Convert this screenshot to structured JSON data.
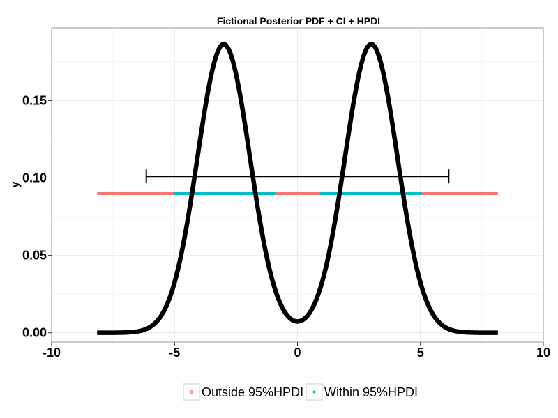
{
  "chart_data": {
    "type": "line",
    "title": "Fictional Posterior PDF + CI + HPDI",
    "xlabel": "",
    "ylabel": "y",
    "xlim": [
      -10,
      10
    ],
    "ylim": [
      -0.006,
      0.197
    ],
    "x_ticks": [
      -10,
      -5,
      0,
      5,
      10
    ],
    "x_tick_labels": [
      "-10",
      "-5",
      "0",
      "5",
      "10"
    ],
    "y_ticks": [
      0.0,
      0.05,
      0.1,
      0.15
    ],
    "y_tick_labels": [
      "0.00",
      "0.05",
      "0.10",
      "0.15"
    ],
    "grid": true,
    "legend_position": "bottom",
    "series": [
      {
        "kind": "density-curve",
        "color": "#000000",
        "x_range": [
          -8.15,
          8.15
        ],
        "components": [
          {
            "mean": -3,
            "sd": 1.07,
            "weight": 0.5
          },
          {
            "mean": 3,
            "sd": 1.07,
            "weight": 0.5
          }
        ],
        "peak_values": [
          {
            "x": -3,
            "y": 0.187
          },
          {
            "x": 0,
            "y": 0.008
          },
          {
            "x": 3,
            "y": 0.187
          }
        ]
      },
      {
        "kind": "credible-interval",
        "color": "#000000",
        "y": 0.101,
        "x_start": -6.15,
        "x_end": 6.15
      },
      {
        "kind": "hpdi-band",
        "y": 0.09,
        "segments": [
          {
            "x_start": -8.15,
            "x_end": -5.05,
            "group": "Outside 95%HPDI"
          },
          {
            "x_start": -5.05,
            "x_end": -0.9,
            "group": "Within 95%HPDI"
          },
          {
            "x_start": -0.9,
            "x_end": 0.9,
            "group": "Outside 95%HPDI"
          },
          {
            "x_start": 0.9,
            "x_end": 5.05,
            "group": "Within 95%HPDI"
          },
          {
            "x_start": 5.05,
            "x_end": 8.15,
            "group": "Outside 95%HPDI"
          }
        ]
      }
    ],
    "legend": [
      {
        "label": "Outside 95%HPDI",
        "color": "#F8766D"
      },
      {
        "label": "Within 95%HPDI",
        "color": "#00BFC4"
      }
    ]
  }
}
